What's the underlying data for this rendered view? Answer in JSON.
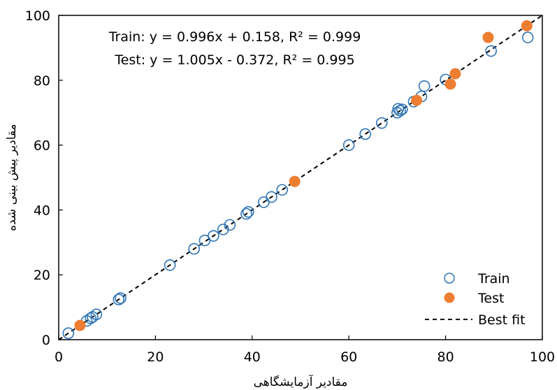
{
  "chart_data": {
    "type": "scatter",
    "xlabel": "مقادیر آزمایشگاهی",
    "ylabel": "مقادیر پیش بینی شده",
    "xlim": [
      0,
      100
    ],
    "ylim": [
      0,
      100
    ],
    "xticks": [
      0,
      20,
      40,
      60,
      80,
      100
    ],
    "yticks": [
      0,
      20,
      40,
      60,
      80,
      100
    ],
    "grid": false,
    "legend_position": "bottom-right",
    "annotations": [
      "Train: y = 0.996x + 0.158, R² = 0.999",
      "Test: y = 1.005x - 0.372, R² = 0.995"
    ],
    "series": [
      {
        "name": "Train",
        "marker": "open-circle",
        "color": "#2e75b6",
        "x": [
          2.0,
          5.8,
          6.6,
          7.0,
          7.8,
          12.4,
          12.8,
          23.0,
          28.0,
          30.2,
          32.0,
          34.0,
          35.4,
          38.8,
          39.2,
          42.4,
          44.0,
          46.2,
          60.0,
          63.4,
          66.8,
          70.0,
          70.2,
          70.6,
          71.0,
          73.4,
          75.0,
          75.6,
          80.0,
          89.4,
          97.0
        ],
        "y": [
          2.0,
          5.8,
          6.6,
          7.0,
          7.8,
          12.4,
          12.8,
          23.0,
          28.0,
          30.6,
          32.0,
          34.0,
          35.4,
          38.8,
          39.4,
          42.4,
          44.0,
          46.2,
          60.0,
          63.4,
          66.8,
          70.0,
          71.2,
          70.6,
          71.0,
          73.4,
          75.0,
          78.2,
          80.2,
          89.0,
          93.2
        ]
      },
      {
        "name": "Test",
        "marker": "filled-circle",
        "color": "#ed7d31",
        "x": [
          4.4,
          48.8,
          74.0,
          81.0,
          82.0,
          88.8,
          96.8
        ],
        "y": [
          4.4,
          48.8,
          73.8,
          78.8,
          82.0,
          93.2,
          96.8
        ]
      },
      {
        "name": "Best fit",
        "marker": "dashed-line",
        "color": "#000000",
        "x": [
          0,
          100
        ],
        "y": [
          0,
          100
        ]
      }
    ]
  }
}
